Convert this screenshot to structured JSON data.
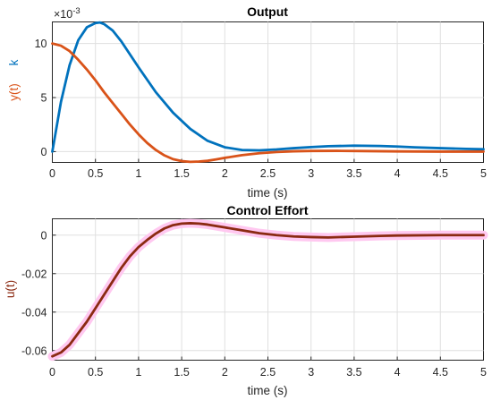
{
  "chart_data": [
    {
      "type": "line",
      "title": "Output",
      "xlabel": "time (s)",
      "ylabel": "y(t)",
      "ylabel_right": "k",
      "exponent_label": "×10",
      "exponent_power": "-3",
      "xlim": [
        0,
        5
      ],
      "ylim": [
        -1,
        12
      ],
      "grid": true,
      "xticks": [
        "0",
        "0.5",
        "1",
        "1.5",
        "2",
        "2.5",
        "3",
        "3.5",
        "4",
        "4.5",
        "5"
      ],
      "yticks": [
        {
          "value": 0,
          "label": "0"
        },
        {
          "value": 5,
          "label": "5"
        },
        {
          "value": 10,
          "label": "10"
        }
      ],
      "series": [
        {
          "color": "#0072BD",
          "x": [
            0,
            0.1,
            0.2,
            0.3,
            0.4,
            0.5,
            0.55,
            0.6,
            0.7,
            0.8,
            0.9,
            1.0,
            1.2,
            1.4,
            1.6,
            1.8,
            2.0,
            2.2,
            2.4,
            2.6,
            2.8,
            3.0,
            3.2,
            3.5,
            3.8,
            4.0,
            4.2,
            4.5,
            4.8,
            5.0
          ],
          "y": [
            0,
            4.6,
            8.0,
            10.3,
            11.5,
            11.9,
            11.95,
            11.8,
            11.2,
            10.2,
            9.0,
            7.8,
            5.5,
            3.6,
            2.1,
            1.0,
            0.4,
            0.15,
            0.12,
            0.2,
            0.32,
            0.42,
            0.5,
            0.55,
            0.52,
            0.47,
            0.4,
            0.32,
            0.25,
            0.22
          ]
        },
        {
          "color": "#D95319",
          "x": [
            0,
            0.1,
            0.2,
            0.3,
            0.4,
            0.5,
            0.6,
            0.7,
            0.8,
            0.9,
            1.0,
            1.1,
            1.2,
            1.3,
            1.4,
            1.5,
            1.6,
            1.7,
            1.8,
            1.9,
            2.0,
            2.2,
            2.4,
            2.6,
            2.8,
            3.0,
            3.3,
            3.6,
            4.0,
            4.5,
            5.0
          ],
          "y": [
            10,
            9.8,
            9.3,
            8.5,
            7.6,
            6.6,
            5.5,
            4.5,
            3.5,
            2.5,
            1.6,
            0.8,
            0.15,
            -0.35,
            -0.7,
            -0.88,
            -0.95,
            -0.92,
            -0.85,
            -0.72,
            -0.58,
            -0.33,
            -0.15,
            -0.04,
            0.03,
            0.06,
            0.07,
            0.05,
            0.02,
            0.0,
            0.0
          ]
        }
      ]
    },
    {
      "type": "line",
      "title": "Control Effort",
      "xlabel": "time (s)",
      "ylabel": "u(t)",
      "xlim": [
        0,
        5
      ],
      "ylim": [
        -0.065,
        0.0085
      ],
      "grid": true,
      "xticks": [
        "0",
        "0.5",
        "1",
        "1.5",
        "2",
        "2.5",
        "3",
        "3.5",
        "4",
        "4.5",
        "5"
      ],
      "yticks": [
        {
          "value": 0,
          "label": "0"
        },
        {
          "value": -0.02,
          "label": "-0.02"
        },
        {
          "value": -0.04,
          "label": "-0.04"
        },
        {
          "value": -0.06,
          "label": "-0.06"
        }
      ],
      "series": [
        {
          "color": "#FFC8F0",
          "width": 10,
          "x": [
            0,
            0.1,
            0.2,
            0.3,
            0.4,
            0.5,
            0.6,
            0.7,
            0.8,
            0.9,
            1.0,
            1.1,
            1.2,
            1.3,
            1.4,
            1.5,
            1.6,
            1.7,
            1.8,
            2.0,
            2.2,
            2.4,
            2.6,
            2.8,
            3.0,
            3.2,
            3.5,
            3.8,
            4.0,
            4.5,
            5.0
          ],
          "y": [
            -0.063,
            -0.061,
            -0.057,
            -0.051,
            -0.045,
            -0.038,
            -0.031,
            -0.024,
            -0.017,
            -0.011,
            -0.0062,
            -0.0025,
            0.0008,
            0.0035,
            0.0052,
            0.006,
            0.0062,
            0.006,
            0.0055,
            0.004,
            0.0025,
            0.001,
            0.0,
            -0.0007,
            -0.001,
            -0.0012,
            -0.0008,
            -0.0004,
            -0.0002,
            0.0,
            0.0
          ]
        },
        {
          "color": "#8B2A12",
          "width": 2.8,
          "x": [
            0,
            0.1,
            0.2,
            0.3,
            0.4,
            0.5,
            0.6,
            0.7,
            0.8,
            0.9,
            1.0,
            1.1,
            1.2,
            1.3,
            1.4,
            1.5,
            1.6,
            1.7,
            1.8,
            2.0,
            2.2,
            2.4,
            2.6,
            2.8,
            3.0,
            3.2,
            3.5,
            3.8,
            4.0,
            4.5,
            5.0
          ],
          "y": [
            -0.063,
            -0.061,
            -0.057,
            -0.051,
            -0.045,
            -0.038,
            -0.031,
            -0.024,
            -0.017,
            -0.011,
            -0.0062,
            -0.0025,
            0.0008,
            0.0035,
            0.0052,
            0.006,
            0.0062,
            0.006,
            0.0055,
            0.004,
            0.0025,
            0.001,
            0.0,
            -0.0007,
            -0.001,
            -0.0012,
            -0.0008,
            -0.0004,
            -0.0002,
            0.0,
            0.0
          ]
        }
      ]
    }
  ]
}
